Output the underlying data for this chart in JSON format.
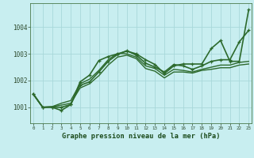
{
  "xlabel": "Graphe pression niveau de la mer (hPa)",
  "background_color": "#c8eef0",
  "grid_color": "#a8d8da",
  "line_color": "#2d6a2d",
  "ylim": [
    1000.4,
    1004.9
  ],
  "yticks": [
    1001,
    1002,
    1003,
    1004
  ],
  "xlim": [
    -0.3,
    23.3
  ],
  "series": [
    {
      "y": [
        1001.5,
        1001.0,
        1001.0,
        1001.0,
        1001.1,
        1001.95,
        1002.2,
        1002.75,
        1002.9,
        1003.0,
        1003.1,
        1003.0,
        1002.78,
        1002.6,
        1002.26,
        1002.55,
        1002.62,
        1002.62,
        1002.62,
        1003.2,
        1003.5,
        1002.72,
        1002.72,
        1004.65
      ],
      "marker": true,
      "lw": 1.2
    },
    {
      "y": [
        1001.5,
        1001.0,
        1001.0,
        1000.88,
        1001.1,
        1001.82,
        1001.95,
        1002.32,
        1002.72,
        1002.98,
        1003.12,
        1002.95,
        1002.65,
        1002.5,
        1002.32,
        1002.6,
        1002.55,
        1002.42,
        1002.55,
        1002.72,
        1002.78,
        1002.78,
        1003.45,
        1003.88
      ],
      "marker": true,
      "lw": 1.2
    },
    {
      "y": [
        1001.48,
        1001.0,
        1001.02,
        1001.15,
        1001.25,
        1001.88,
        1002.05,
        1002.38,
        1002.78,
        1003.02,
        1003.0,
        1002.88,
        1002.55,
        1002.45,
        1002.2,
        1002.42,
        1002.38,
        1002.32,
        1002.42,
        1002.5,
        1002.58,
        1002.58,
        1002.68,
        1002.72
      ],
      "marker": false,
      "lw": 1.0
    },
    {
      "y": [
        1001.48,
        1001.0,
        1001.02,
        1001.08,
        1001.15,
        1001.72,
        1001.88,
        1002.18,
        1002.58,
        1002.88,
        1002.95,
        1002.82,
        1002.45,
        1002.35,
        1002.1,
        1002.32,
        1002.32,
        1002.28,
        1002.38,
        1002.42,
        1002.48,
        1002.48,
        1002.58,
        1002.62
      ],
      "marker": false,
      "lw": 1.0
    }
  ]
}
